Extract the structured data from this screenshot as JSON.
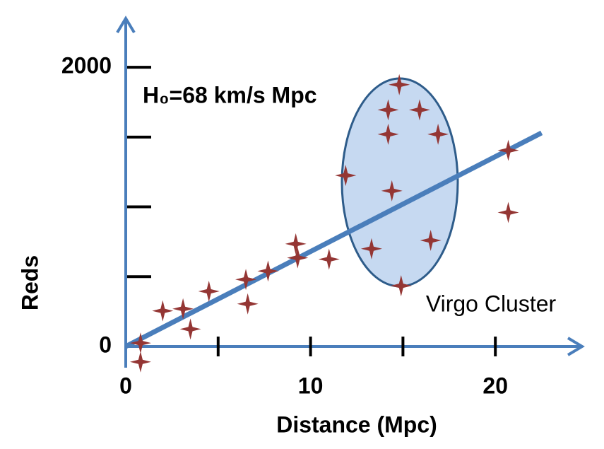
{
  "chart_data": {
    "type": "scatter",
    "title": "H₀=68 km/s Mpc",
    "x_label": "Distance (Mpc)",
    "y_label": "Reds",
    "annotation": "Virgo Cluster",
    "color": "#943634",
    "axis_color": "#4a7ebb",
    "xlim": [
      0,
      25
    ],
    "ylim": [
      0,
      2350
    ],
    "xticks": [
      0,
      {
        "value": 5,
        "label": null
      },
      10,
      {
        "value": 15,
        "label": null
      },
      20
    ],
    "yticks": [
      0,
      {
        "value": 500,
        "label": null
      },
      {
        "value": 1000,
        "label": null
      },
      {
        "value": 1500,
        "label": null
      },
      2000
    ],
    "fit": {
      "x": [
        0,
        22.5
      ],
      "y": [
        0,
        1530
      ]
    },
    "x": [
      0.8,
      0.8,
      2.0,
      3.1,
      3.5,
      4.5,
      6.5,
      6.6,
      7.7,
      9.3,
      9.2,
      11.0,
      11.9,
      13.3,
      14.2,
      14.2,
      14.8,
      15.9,
      16.9,
      14.4,
      14.9,
      16.5,
      20.7,
      20.7
    ],
    "y": [
      25,
      -110,
      255,
      270,
      125,
      395,
      480,
      305,
      540,
      635,
      735,
      625,
      1225,
      700,
      1520,
      1695,
      1875,
      1695,
      1520,
      1115,
      435,
      760,
      1405,
      960
    ]
  }
}
